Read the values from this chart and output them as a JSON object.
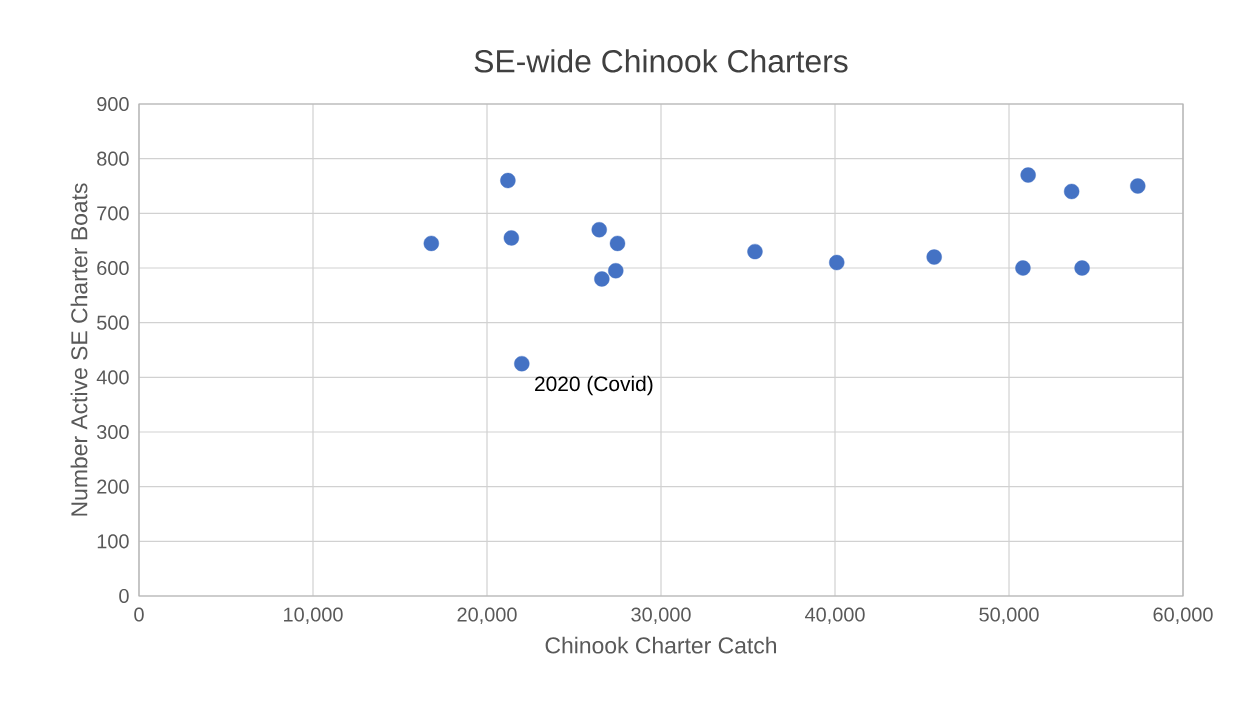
{
  "chart_data": {
    "type": "scatter",
    "title": "SE-wide Chinook Charters",
    "xlabel": "Chinook Charter Catch",
    "ylabel": "Number Active SE Charter Boats",
    "x": [
      16800,
      21200,
      21400,
      22000,
      26450,
      26600,
      27400,
      27500,
      35400,
      40100,
      45700,
      50800,
      51100,
      53600,
      54200,
      57400
    ],
    "values": [
      645,
      760,
      655,
      425,
      670,
      580,
      595,
      645,
      630,
      610,
      620,
      600,
      770,
      740,
      600,
      750
    ],
    "color": "#4472c4",
    "marker": "circle",
    "grid": true,
    "xlim": [
      0,
      60000
    ],
    "ylim": [
      0,
      900
    ],
    "xticks": [
      0,
      {
        "value": 10000,
        "label": "10,000"
      },
      {
        "value": 20000,
        "label": "20,000"
      },
      {
        "value": 30000,
        "label": "30,000"
      },
      {
        "value": 40000,
        "label": "40,000"
      },
      {
        "value": 50000,
        "label": "50,000"
      },
      {
        "value": 60000,
        "label": "60,000"
      }
    ],
    "yticks": [
      0,
      100,
      200,
      300,
      400,
      500,
      600,
      700,
      800,
      900
    ],
    "annotations": [
      {
        "text": "2020 (Covid)",
        "x": 22000,
        "y": 425
      }
    ]
  }
}
